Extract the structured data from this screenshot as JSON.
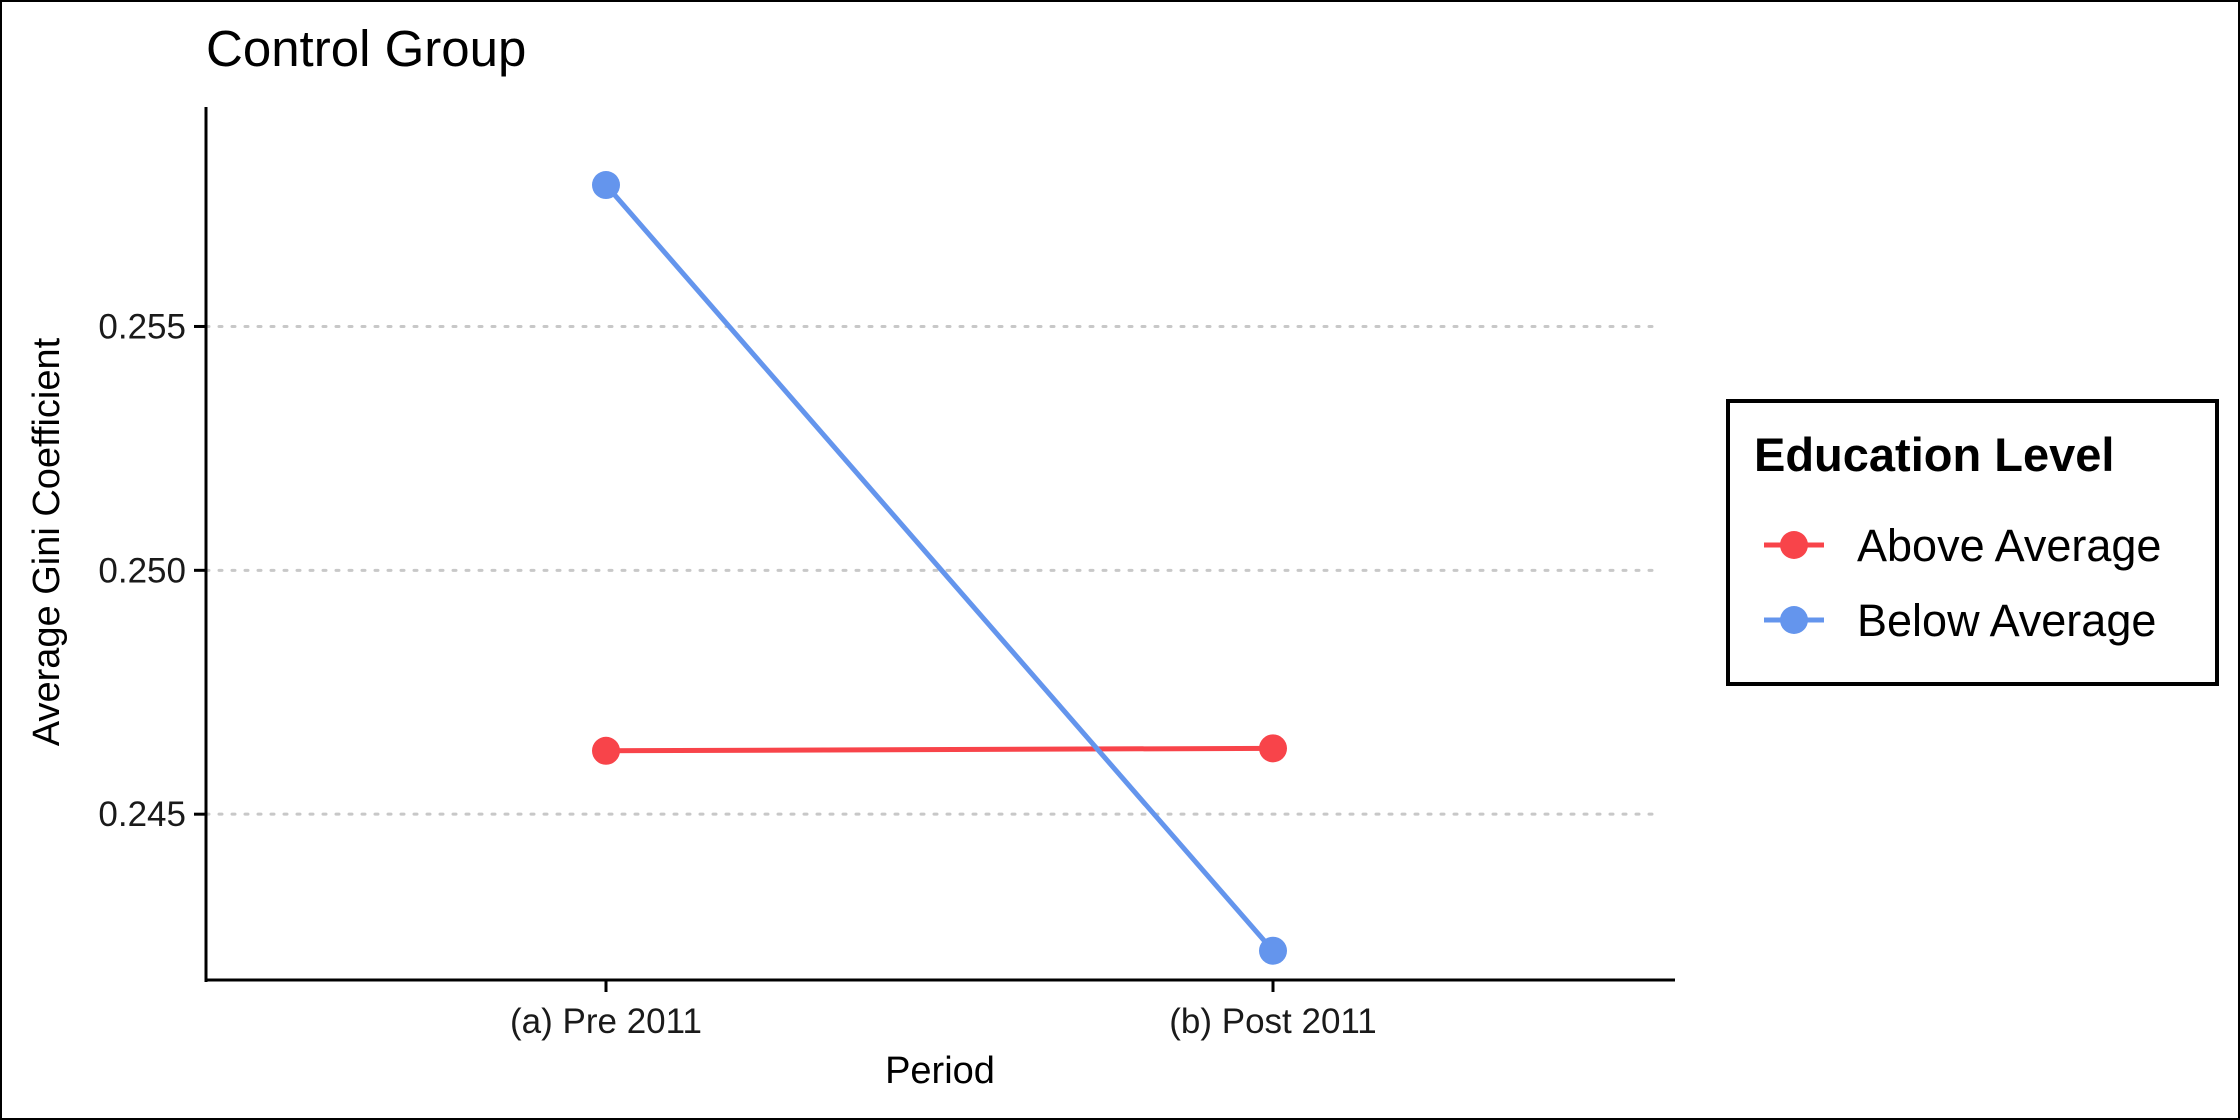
{
  "chart_data": {
    "type": "line",
    "title": "Control Group",
    "xlabel": "Period",
    "ylabel": "Average Gini Coefficient",
    "categories": [
      "(a) Pre 2011",
      "(b) Post 2011"
    ],
    "yticks": [
      "0.245",
      "0.250",
      "0.255"
    ],
    "ytick_values": [
      0.245,
      0.25,
      0.255
    ],
    "ylim": [
      0.2416,
      0.2595
    ],
    "grid": "horizontal dotted",
    "legend": {
      "title": "Education Level",
      "position": "right"
    },
    "series": [
      {
        "name": "Above Average",
        "color": "#F8444A",
        "values": [
          0.2463,
          0.24635
        ]
      },
      {
        "name": "Below Average",
        "color": "#6495ED",
        "values": [
          0.2579,
          0.2422
        ]
      }
    ]
  }
}
